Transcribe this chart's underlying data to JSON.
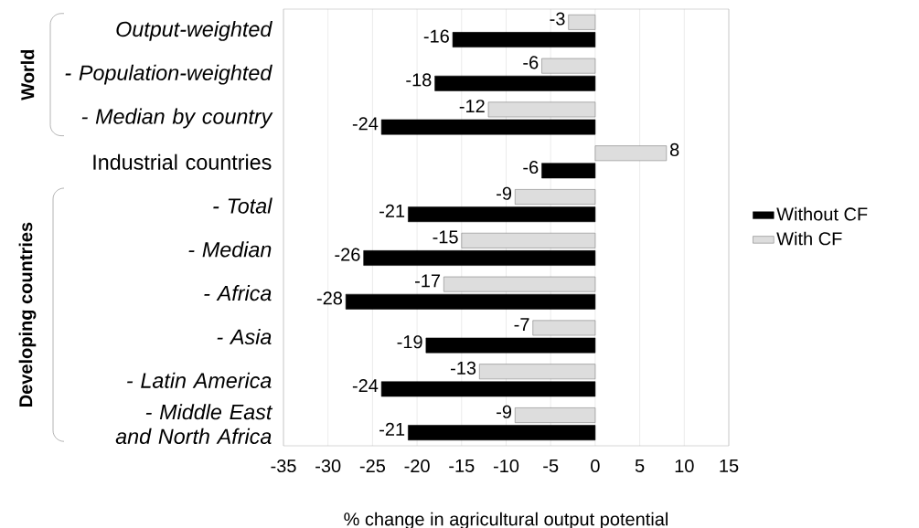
{
  "chart_data": {
    "type": "bar",
    "orientation": "horizontal",
    "xlabel": "% change in agricultural output potential",
    "categories": [
      "Output-weighted",
      "- Population-weighted",
      "- Median by country",
      "Industrial countries",
      "- Total",
      "- Median",
      "- Africa",
      "- Asia",
      "- Latin America",
      "- Middle East and North Africa"
    ],
    "series": [
      {
        "name": "Without CF",
        "color": "#000000",
        "values": [
          -16,
          -18,
          -24,
          -6,
          -21,
          -26,
          -28,
          -19,
          -24,
          -21
        ]
      },
      {
        "name": "With CF",
        "color": "#dddddd",
        "values": [
          -3,
          -6,
          -12,
          8,
          -9,
          -15,
          -17,
          -7,
          -13,
          -9
        ]
      }
    ],
    "xlim": [
      -35,
      15
    ],
    "xticks": [
      -35,
      -30,
      -25,
      -20,
      -15,
      -10,
      -5,
      0,
      5,
      10,
      15
    ],
    "grid": "x",
    "legend": "right",
    "data_labels": true,
    "annotations": [
      "World",
      "Developing countries"
    ]
  }
}
